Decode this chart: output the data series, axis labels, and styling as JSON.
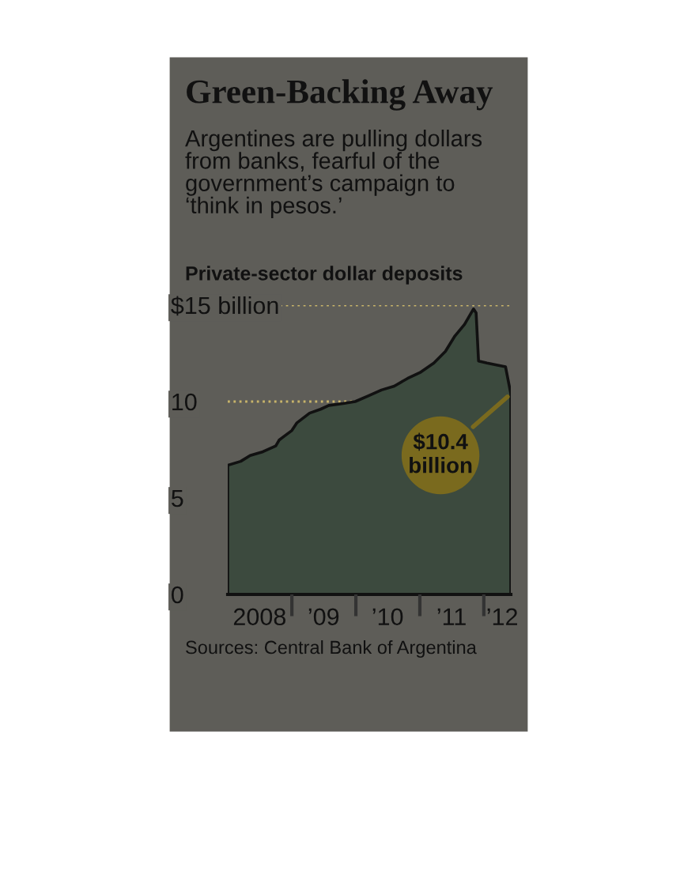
{
  "chart_data": {
    "type": "area",
    "title": "Green-Backing Away",
    "subtitle": "Argentines are pulling dollars\nfrom banks, fearful of the\ngovernment’s campaign to\n‘think in pesos.’",
    "ylabel": "Private-sector dollar deposits",
    "x": [
      "2008-01-01",
      "2008-03-15",
      "2008-05-08",
      "2008-07-20",
      "2008-10-01",
      "2008-10-20",
      "2008-11-18",
      "2009-01-01",
      "2009-01-30",
      "2009-04-12",
      "2009-06-13",
      "2009-07-31",
      "2009-10-20",
      "2009-12-28",
      "2010-03-15",
      "2010-05-27",
      "2010-08-08",
      "2010-10-23",
      "2011-01-01",
      "2011-03-22",
      "2011-05-27",
      "2011-07-20",
      "2011-09-13",
      "2011-11-03",
      "2011-11-18",
      "2011-12-02",
      "2012-01-19",
      "2012-03-14",
      "2012-05-04",
      "2012-06-03"
    ],
    "series": [
      {
        "color": "#3c4a3e",
        "values": [
          6.7,
          6.9,
          7.2,
          7.4,
          7.7,
          8.0,
          8.2,
          8.5,
          8.9,
          9.4,
          9.6,
          9.8,
          9.9,
          10.0,
          10.3,
          10.6,
          10.8,
          11.2,
          11.5,
          12.0,
          12.6,
          13.4,
          14.0,
          14.8,
          14.6,
          12.1,
          12.0,
          11.9,
          11.8,
          10.4
        ]
      }
    ],
    "xlim": [
      "2008-01-01",
      "2012-06-03"
    ],
    "ylim": [
      0,
      15
    ],
    "xticks": [
      {
        "value": "2008-07-01",
        "label": "2008"
      },
      {
        "value": "2009-01-01",
        "label": null
      },
      {
        "value": "2009-07-01",
        "label": "’09"
      },
      {
        "value": "2010-01-01",
        "label": null
      },
      {
        "value": "2010-07-01",
        "label": "’10"
      },
      {
        "value": "2011-01-01",
        "label": null
      },
      {
        "value": "2011-07-01",
        "label": "’11"
      },
      {
        "value": "2012-01-01",
        "label": null
      },
      {
        "value": "2012-04-15",
        "label": "’12"
      }
    ],
    "yticks": [
      0,
      5,
      10,
      {
        "value": 15,
        "label": "$15 billion"
      }
    ],
    "ref_lines": [
      {
        "axis": "y",
        "value": 10,
        "color": "#c8b46a",
        "line_style": "dotted"
      },
      {
        "axis": "y",
        "value": 15,
        "color": "#c8b46a",
        "line_style": "dotted"
      }
    ],
    "annotations": [
      {
        "text": "$10.4\nbillion",
        "x": "2012-06-03",
        "y": 10.4
      },
      "Sources: Central Bank of Argentina"
    ]
  }
}
